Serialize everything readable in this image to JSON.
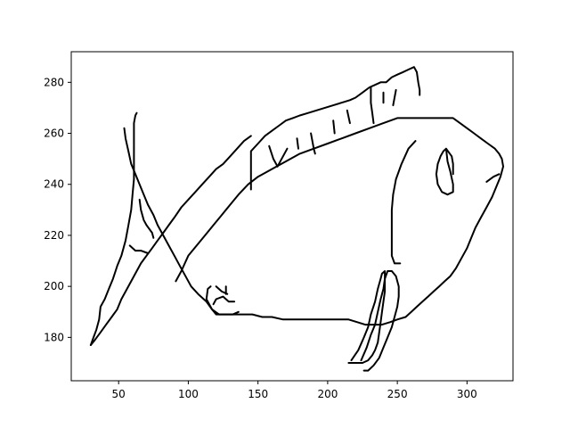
{
  "chart_data": {
    "type": "line",
    "title": "",
    "xlabel": "",
    "ylabel": "",
    "xlim": [
      16,
      333
    ],
    "ylim": [
      163,
      292
    ],
    "x_ticks": [
      50,
      100,
      150,
      200,
      250,
      300
    ],
    "y_ticks": [
      180,
      200,
      220,
      240,
      260,
      280
    ],
    "x_tick_labels": [
      "50",
      "100",
      "150",
      "200",
      "250",
      "300"
    ],
    "y_tick_labels": [
      "180",
      "200",
      "220",
      "240",
      "260",
      "280"
    ],
    "grid": false,
    "line_color": "#000000",
    "series": [
      {
        "values": [
          [
            30,
            177
          ],
          [
            32,
            180
          ],
          [
            34,
            183
          ],
          [
            36,
            187
          ],
          [
            37,
            192
          ],
          [
            40,
            195
          ],
          [
            43,
            199
          ],
          [
            46,
            203
          ],
          [
            49,
            208
          ],
          [
            52,
            212
          ],
          [
            55,
            218
          ],
          [
            57,
            224
          ],
          [
            59,
            230
          ],
          [
            60,
            236
          ],
          [
            61,
            242
          ],
          [
            61,
            248
          ],
          [
            61,
            254
          ],
          [
            61,
            260
          ],
          [
            61,
            264
          ],
          [
            62,
            267
          ],
          [
            63,
            268
          ]
        ]
      },
      {
        "values": [
          [
            30,
            177
          ],
          [
            33,
            179
          ],
          [
            37,
            182
          ],
          [
            41,
            185
          ],
          [
            45,
            188
          ],
          [
            49,
            191
          ],
          [
            52,
            195
          ],
          [
            56,
            199
          ],
          [
            60,
            203
          ],
          [
            63,
            206
          ],
          [
            66,
            209
          ],
          [
            70,
            212
          ],
          [
            74,
            215
          ],
          [
            78,
            218
          ],
          [
            82,
            221
          ],
          [
            86,
            224
          ],
          [
            90,
            227
          ],
          [
            95,
            231
          ],
          [
            100,
            234
          ],
          [
            105,
            237
          ],
          [
            110,
            240
          ],
          [
            115,
            243
          ],
          [
            120,
            246
          ],
          [
            125,
            248
          ],
          [
            130,
            251
          ],
          [
            135,
            254
          ],
          [
            140,
            257
          ],
          [
            145,
            259
          ]
        ]
      },
      {
        "values": [
          [
            54,
            262
          ],
          [
            55,
            258
          ],
          [
            57,
            253
          ],
          [
            59,
            248
          ],
          [
            62,
            244
          ],
          [
            65,
            240
          ],
          [
            68,
            236
          ],
          [
            71,
            232
          ],
          [
            75,
            228
          ],
          [
            78,
            224
          ],
          [
            82,
            220
          ],
          [
            86,
            216
          ],
          [
            90,
            212
          ],
          [
            94,
            208
          ],
          [
            98,
            204
          ],
          [
            102,
            200
          ],
          [
            107,
            197
          ],
          [
            113,
            194
          ],
          [
            117,
            191
          ],
          [
            122,
            189
          ],
          [
            127,
            189
          ],
          [
            133,
            189
          ],
          [
            139,
            189
          ],
          [
            146,
            189
          ],
          [
            153,
            188
          ],
          [
            160,
            188
          ],
          [
            168,
            187
          ],
          [
            176,
            187
          ],
          [
            184,
            187
          ],
          [
            192,
            187
          ],
          [
            200,
            187
          ],
          [
            208,
            187
          ],
          [
            215,
            187
          ],
          [
            221,
            186
          ],
          [
            227,
            185
          ],
          [
            233,
            185
          ],
          [
            239,
            185
          ],
          [
            245,
            186
          ],
          [
            250,
            187
          ],
          [
            256,
            188
          ],
          [
            260,
            190
          ],
          [
            264,
            192
          ],
          [
            268,
            194
          ],
          [
            272,
            196
          ],
          [
            276,
            198
          ],
          [
            280,
            200
          ],
          [
            284,
            202
          ],
          [
            288,
            204
          ],
          [
            292,
            207
          ],
          [
            296,
            211
          ],
          [
            300,
            215
          ],
          [
            303,
            219
          ],
          [
            306,
            223
          ],
          [
            310,
            227
          ],
          [
            314,
            231
          ],
          [
            318,
            235
          ],
          [
            321,
            239
          ],
          [
            324,
            243
          ],
          [
            326,
            247
          ],
          [
            325,
            250
          ],
          [
            323,
            252
          ],
          [
            320,
            254
          ],
          [
            315,
            256
          ],
          [
            310,
            258
          ],
          [
            305,
            260
          ],
          [
            300,
            262
          ],
          [
            295,
            264
          ],
          [
            290,
            266
          ],
          [
            285,
            266
          ],
          [
            278,
            266
          ],
          [
            270,
            266
          ],
          [
            260,
            266
          ],
          [
            250,
            266
          ],
          [
            240,
            264
          ],
          [
            230,
            262
          ],
          [
            220,
            260
          ],
          [
            210,
            258
          ],
          [
            200,
            256
          ],
          [
            190,
            254
          ],
          [
            180,
            252
          ],
          [
            170,
            249
          ],
          [
            160,
            246
          ],
          [
            150,
            243
          ],
          [
            143,
            240
          ],
          [
            136,
            236
          ],
          [
            130,
            232
          ],
          [
            124,
            228
          ],
          [
            118,
            224
          ],
          [
            112,
            220
          ],
          [
            106,
            216
          ],
          [
            100,
            212
          ],
          [
            95,
            206
          ],
          [
            91,
            202
          ]
        ]
      },
      {
        "values": [
          [
            145,
            253
          ],
          [
            145,
            248
          ],
          [
            145,
            243
          ],
          [
            145,
            238
          ],
          [
            145,
            253
          ],
          [
            150,
            256
          ],
          [
            155,
            259
          ],
          [
            160,
            261
          ],
          [
            165,
            263
          ],
          [
            170,
            265
          ],
          [
            175,
            266
          ],
          [
            180,
            267
          ],
          [
            186,
            268
          ],
          [
            192,
            269
          ],
          [
            198,
            270
          ],
          [
            204,
            271
          ],
          [
            210,
            272
          ],
          [
            216,
            273
          ],
          [
            220,
            274
          ],
          [
            225,
            276
          ],
          [
            230,
            278
          ],
          [
            234,
            279
          ],
          [
            238,
            280
          ],
          [
            242,
            280
          ],
          [
            246,
            282
          ],
          [
            250,
            283
          ],
          [
            254,
            284
          ],
          [
            258,
            285
          ],
          [
            262,
            286
          ],
          [
            264,
            284
          ],
          [
            265,
            280
          ],
          [
            266,
            277
          ],
          [
            266,
            275
          ]
        ]
      },
      {
        "values": [
          [
            233,
            264
          ],
          [
            232,
            268
          ],
          [
            231,
            272
          ],
          [
            231,
            276
          ],
          [
            231,
            278
          ]
        ]
      },
      {
        "values": [
          [
            158,
            255
          ],
          [
            161,
            250
          ],
          [
            164,
            247
          ]
        ]
      },
      {
        "values": [
          [
            164,
            247
          ],
          [
            168,
            251
          ],
          [
            171,
            254
          ]
        ]
      },
      {
        "values": [
          [
            178,
            258
          ],
          [
            179,
            254
          ]
        ]
      },
      {
        "values": [
          [
            188,
            260
          ],
          [
            190,
            254
          ],
          [
            191,
            252
          ]
        ]
      },
      {
        "values": [
          [
            204,
            265
          ],
          [
            205,
            260
          ]
        ]
      },
      {
        "values": [
          [
            214,
            269
          ],
          [
            216,
            264
          ]
        ]
      },
      {
        "values": [
          [
            240,
            272
          ],
          [
            240,
            276
          ]
        ]
      },
      {
        "values": [
          [
            247,
            271
          ],
          [
            249,
            277
          ]
        ]
      },
      {
        "values": [
          [
            263,
            257
          ],
          [
            258,
            254
          ],
          [
            253,
            248
          ],
          [
            249,
            242
          ],
          [
            247,
            236
          ],
          [
            246,
            230
          ],
          [
            246,
            224
          ],
          [
            246,
            218
          ],
          [
            246,
            212
          ],
          [
            248,
            209
          ],
          [
            252,
            209
          ]
        ]
      },
      {
        "values": [
          [
            285,
            254
          ],
          [
            286,
            249
          ],
          [
            288,
            245
          ],
          [
            290,
            240
          ],
          [
            290,
            237
          ],
          [
            286,
            236
          ],
          [
            282,
            237
          ],
          [
            279,
            240
          ],
          [
            278,
            244
          ],
          [
            279,
            248
          ],
          [
            281,
            251
          ],
          [
            283,
            253
          ],
          [
            285,
            254
          ],
          [
            289,
            251
          ],
          [
            290,
            248
          ],
          [
            290,
            244
          ]
        ]
      },
      {
        "values": [
          [
            314,
            241
          ],
          [
            319,
            243
          ],
          [
            323,
            244
          ]
        ]
      },
      {
        "values": [
          [
            116,
            200
          ],
          [
            114,
            199
          ],
          [
            113,
            195
          ],
          [
            117,
            191
          ],
          [
            120,
            189
          ],
          [
            124,
            189
          ],
          [
            128,
            189
          ],
          [
            132,
            189
          ],
          [
            136,
            190
          ]
        ]
      },
      {
        "values": [
          [
            118,
            193
          ],
          [
            120,
            195
          ],
          [
            125,
            196
          ],
          [
            129,
            194
          ],
          [
            133,
            194
          ]
        ]
      },
      {
        "values": [
          [
            120,
            200
          ],
          [
            124,
            198
          ],
          [
            128,
            197
          ]
        ]
      },
      {
        "values": [
          [
            127,
            200
          ],
          [
            127,
            197
          ]
        ]
      },
      {
        "values": [
          [
            65,
            234
          ],
          [
            66,
            230
          ],
          [
            68,
            226
          ],
          [
            70,
            224
          ],
          [
            74,
            221
          ],
          [
            75,
            219
          ]
        ]
      },
      {
        "values": [
          [
            58,
            216
          ],
          [
            62,
            214
          ],
          [
            66,
            214
          ],
          [
            71,
            213
          ]
        ]
      },
      {
        "values": [
          [
            217,
            171
          ],
          [
            222,
            175
          ],
          [
            226,
            180
          ],
          [
            229,
            184
          ],
          [
            231,
            189
          ],
          [
            234,
            194
          ],
          [
            236,
            199
          ],
          [
            238,
            203
          ],
          [
            239,
            205
          ],
          [
            241,
            206
          ],
          [
            241,
            202
          ],
          [
            241,
            198
          ],
          [
            240,
            194
          ],
          [
            239,
            190
          ],
          [
            238,
            186
          ],
          [
            237,
            182
          ],
          [
            236,
            178
          ],
          [
            234,
            175
          ],
          [
            232,
            173
          ],
          [
            229,
            171
          ],
          [
            225,
            170
          ],
          [
            222,
            170
          ],
          [
            218,
            170
          ],
          [
            215,
            170
          ]
        ]
      },
      {
        "values": [
          [
            224,
            171
          ],
          [
            228,
            176
          ],
          [
            231,
            181
          ],
          [
            234,
            185
          ],
          [
            236,
            190
          ],
          [
            238,
            195
          ],
          [
            240,
            199
          ],
          [
            241,
            203
          ],
          [
            243,
            206
          ],
          [
            246,
            206
          ],
          [
            249,
            204
          ],
          [
            251,
            200
          ],
          [
            251,
            196
          ],
          [
            250,
            192
          ],
          [
            248,
            188
          ],
          [
            246,
            184
          ],
          [
            243,
            180
          ],
          [
            240,
            176
          ],
          [
            237,
            172
          ],
          [
            233,
            169
          ],
          [
            229,
            167
          ],
          [
            226,
            167
          ]
        ]
      }
    ]
  }
}
